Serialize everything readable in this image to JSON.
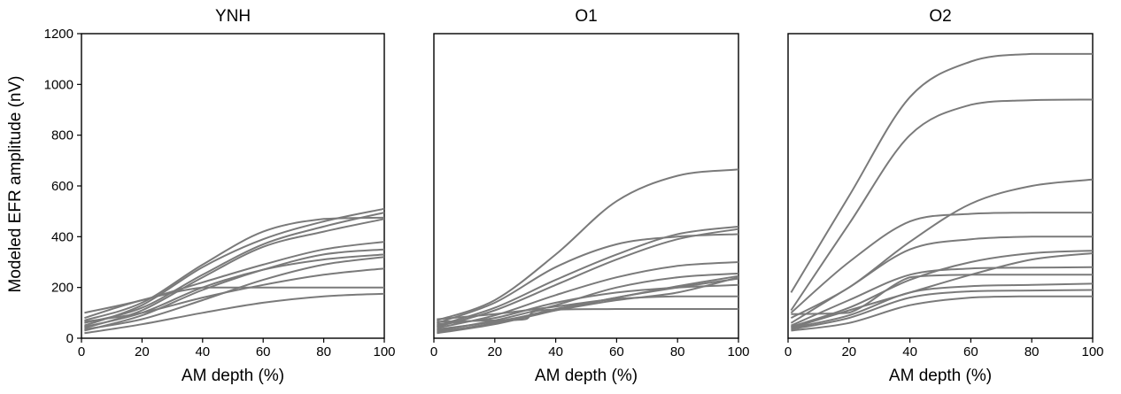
{
  "chart_data": [
    {
      "type": "line",
      "title": "YNH",
      "xlabel": "AM depth (%)",
      "ylabel": "Modeled EFR amplitude (nV)",
      "xlim": [
        0,
        100
      ],
      "ylim": [
        0,
        1200
      ],
      "xticks": [
        "0",
        "20",
        "40",
        "60",
        "80",
        "100"
      ],
      "yticks": [
        "0",
        "200",
        "400",
        "600",
        "800",
        "1000",
        "1200"
      ],
      "grid": false,
      "legend": "none",
      "series": [
        {
          "points": [
            [
              1,
              70
            ],
            [
              20,
              140
            ],
            [
              40,
              290
            ],
            [
              60,
              420
            ],
            [
              80,
              470
            ],
            [
              100,
              475
            ]
          ]
        },
        {
          "points": [
            [
              1,
              50
            ],
            [
              20,
              130
            ],
            [
              40,
              280
            ],
            [
              60,
              390
            ],
            [
              80,
              460
            ],
            [
              100,
              510
            ]
          ]
        },
        {
          "points": [
            [
              1,
              60
            ],
            [
              20,
              120
            ],
            [
              40,
              250
            ],
            [
              60,
              370
            ],
            [
              80,
              440
            ],
            [
              100,
              495
            ]
          ]
        },
        {
          "points": [
            [
              1,
              40
            ],
            [
              20,
              110
            ],
            [
              40,
              240
            ],
            [
              60,
              360
            ],
            [
              80,
              420
            ],
            [
              100,
              470
            ]
          ]
        },
        {
          "points": [
            [
              1,
              80
            ],
            [
              20,
              150
            ],
            [
              40,
              200
            ],
            [
              60,
              200
            ],
            [
              80,
              200
            ],
            [
              100,
              200
            ]
          ]
        },
        {
          "points": [
            [
              1,
              100
            ],
            [
              20,
              150
            ],
            [
              40,
              220
            ],
            [
              60,
              290
            ],
            [
              80,
              350
            ],
            [
              100,
              380
            ]
          ]
        },
        {
          "points": [
            [
              1,
              30
            ],
            [
              20,
              90
            ],
            [
              40,
              190
            ],
            [
              60,
              270
            ],
            [
              80,
              330
            ],
            [
              100,
              350
            ]
          ]
        },
        {
          "points": [
            [
              1,
              45
            ],
            [
              20,
              100
            ],
            [
              40,
              200
            ],
            [
              60,
              270
            ],
            [
              80,
              310
            ],
            [
              100,
              330
            ]
          ]
        },
        {
          "points": [
            [
              1,
              35
            ],
            [
              20,
              75
            ],
            [
              40,
              150
            ],
            [
              60,
              230
            ],
            [
              80,
              290
            ],
            [
              100,
              320
            ]
          ]
        },
        {
          "points": [
            [
              1,
              65
            ],
            [
              20,
              100
            ],
            [
              40,
              160
            ],
            [
              60,
              210
            ],
            [
              80,
              250
            ],
            [
              100,
              275
            ]
          ]
        },
        {
          "points": [
            [
              1,
              20
            ],
            [
              20,
              55
            ],
            [
              40,
              100
            ],
            [
              60,
              140
            ],
            [
              80,
              165
            ],
            [
              100,
              175
            ]
          ]
        }
      ]
    },
    {
      "type": "line",
      "title": "O1",
      "xlabel": "AM depth (%)",
      "ylabel": "",
      "xlim": [
        0,
        100
      ],
      "ylim": [
        0,
        1200
      ],
      "xticks": [
        "0",
        "20",
        "40",
        "60",
        "80",
        "100"
      ],
      "yticks": [],
      "grid": false,
      "legend": "none",
      "series": [
        {
          "points": [
            [
              1,
              70
            ],
            [
              20,
              150
            ],
            [
              40,
              330
            ],
            [
              60,
              540
            ],
            [
              80,
              640
            ],
            [
              100,
              665
            ]
          ]
        },
        {
          "points": [
            [
              1,
              60
            ],
            [
              20,
              140
            ],
            [
              40,
              280
            ],
            [
              60,
              370
            ],
            [
              80,
              400
            ],
            [
              100,
              410
            ]
          ]
        },
        {
          "points": [
            [
              1,
              50
            ],
            [
              20,
              120
            ],
            [
              40,
              230
            ],
            [
              60,
              330
            ],
            [
              80,
              410
            ],
            [
              100,
              440
            ]
          ]
        },
        {
          "points": [
            [
              1,
              45
            ],
            [
              20,
              110
            ],
            [
              40,
              210
            ],
            [
              60,
              310
            ],
            [
              80,
              390
            ],
            [
              100,
              430
            ]
          ]
        },
        {
          "points": [
            [
              1,
              40
            ],
            [
              20,
              90
            ],
            [
              40,
              170
            ],
            [
              60,
              240
            ],
            [
              80,
              285
            ],
            [
              100,
              300
            ]
          ]
        },
        {
          "points": [
            [
              1,
              30
            ],
            [
              20,
              70
            ],
            [
              40,
              130
            ],
            [
              60,
              200
            ],
            [
              80,
              240
            ],
            [
              100,
              255
            ]
          ]
        },
        {
          "points": [
            [
              1,
              55
            ],
            [
              20,
              80
            ],
            [
              40,
              140
            ],
            [
              60,
              180
            ],
            [
              80,
              200
            ],
            [
              100,
              210
            ]
          ]
        },
        {
          "points": [
            [
              1,
              35
            ],
            [
              20,
              65
            ],
            [
              40,
              110
            ],
            [
              60,
              150
            ],
            [
              80,
              180
            ],
            [
              100,
              240
            ]
          ]
        },
        {
          "points": [
            [
              1,
              25
            ],
            [
              20,
              60
            ],
            [
              40,
              115
            ],
            [
              60,
              160
            ],
            [
              80,
              205
            ],
            [
              100,
              245
            ]
          ]
        },
        {
          "points": [
            [
              1,
              20
            ],
            [
              20,
              55
            ],
            [
              40,
              110
            ],
            [
              60,
              160
            ],
            [
              80,
              200
            ],
            [
              100,
              235
            ]
          ]
        },
        {
          "points": [
            [
              1,
              65
            ],
            [
              20,
              70
            ],
            [
              30,
              75
            ],
            [
              35,
              110
            ],
            [
              60,
              115
            ],
            [
              100,
              115
            ]
          ]
        },
        {
          "points": [
            [
              1,
              75
            ],
            [
              20,
              95
            ],
            [
              40,
              125
            ],
            [
              60,
              155
            ],
            [
              80,
              165
            ],
            [
              100,
              165
            ]
          ]
        }
      ]
    },
    {
      "type": "line",
      "title": "O2",
      "xlabel": "AM depth (%)",
      "ylabel": "",
      "xlim": [
        0,
        100
      ],
      "ylim": [
        0,
        1200
      ],
      "xticks": [
        "0",
        "20",
        "40",
        "60",
        "80",
        "100"
      ],
      "yticks": [],
      "grid": false,
      "legend": "none",
      "series": [
        {
          "points": [
            [
              1,
              180
            ],
            [
              20,
              560
            ],
            [
              40,
              950
            ],
            [
              60,
              1090
            ],
            [
              80,
              1120
            ],
            [
              100,
              1120
            ]
          ]
        },
        {
          "points": [
            [
              1,
              110
            ],
            [
              20,
              450
            ],
            [
              40,
              800
            ],
            [
              60,
              920
            ],
            [
              80,
              938
            ],
            [
              100,
              940
            ]
          ]
        },
        {
          "points": [
            [
              1,
              80
            ],
            [
              20,
              200
            ],
            [
              40,
              380
            ],
            [
              60,
              530
            ],
            [
              80,
              600
            ],
            [
              100,
              625
            ]
          ]
        },
        {
          "points": [
            [
              1,
              100
            ],
            [
              20,
              300
            ],
            [
              40,
              460
            ],
            [
              60,
              490
            ],
            [
              80,
              495
            ],
            [
              100,
              495
            ]
          ]
        },
        {
          "points": [
            [
              1,
              60
            ],
            [
              20,
              200
            ],
            [
              40,
              350
            ],
            [
              60,
              390
            ],
            [
              80,
              400
            ],
            [
              100,
              400
            ]
          ]
        },
        {
          "points": [
            [
              1,
              45
            ],
            [
              20,
              120
            ],
            [
              40,
              230
            ],
            [
              60,
              300
            ],
            [
              80,
              335
            ],
            [
              100,
              345
            ]
          ]
        },
        {
          "points": [
            [
              1,
              50
            ],
            [
              20,
              150
            ],
            [
              40,
              250
            ],
            [
              60,
              275
            ],
            [
              80,
              278
            ],
            [
              100,
              280
            ]
          ]
        },
        {
          "points": [
            [
              1,
              95
            ],
            [
              20,
              100
            ],
            [
              40,
              240
            ],
            [
              60,
              250
            ],
            [
              80,
              250
            ],
            [
              100,
              250
            ]
          ]
        },
        {
          "points": [
            [
              1,
              40
            ],
            [
              20,
              110
            ],
            [
              40,
              180
            ],
            [
              60,
              250
            ],
            [
              80,
              310
            ],
            [
              100,
              335
            ]
          ]
        },
        {
          "points": [
            [
              1,
              40
            ],
            [
              20,
              90
            ],
            [
              40,
              180
            ],
            [
              60,
              205
            ],
            [
              80,
              210
            ],
            [
              100,
              215
            ]
          ]
        },
        {
          "points": [
            [
              1,
              35
            ],
            [
              20,
              80
            ],
            [
              40,
              160
            ],
            [
              60,
              185
            ],
            [
              80,
              188
            ],
            [
              100,
              190
            ]
          ]
        },
        {
          "points": [
            [
              1,
              30
            ],
            [
              20,
              60
            ],
            [
              40,
              130
            ],
            [
              60,
              160
            ],
            [
              80,
              165
            ],
            [
              100,
              165
            ]
          ]
        }
      ]
    }
  ]
}
